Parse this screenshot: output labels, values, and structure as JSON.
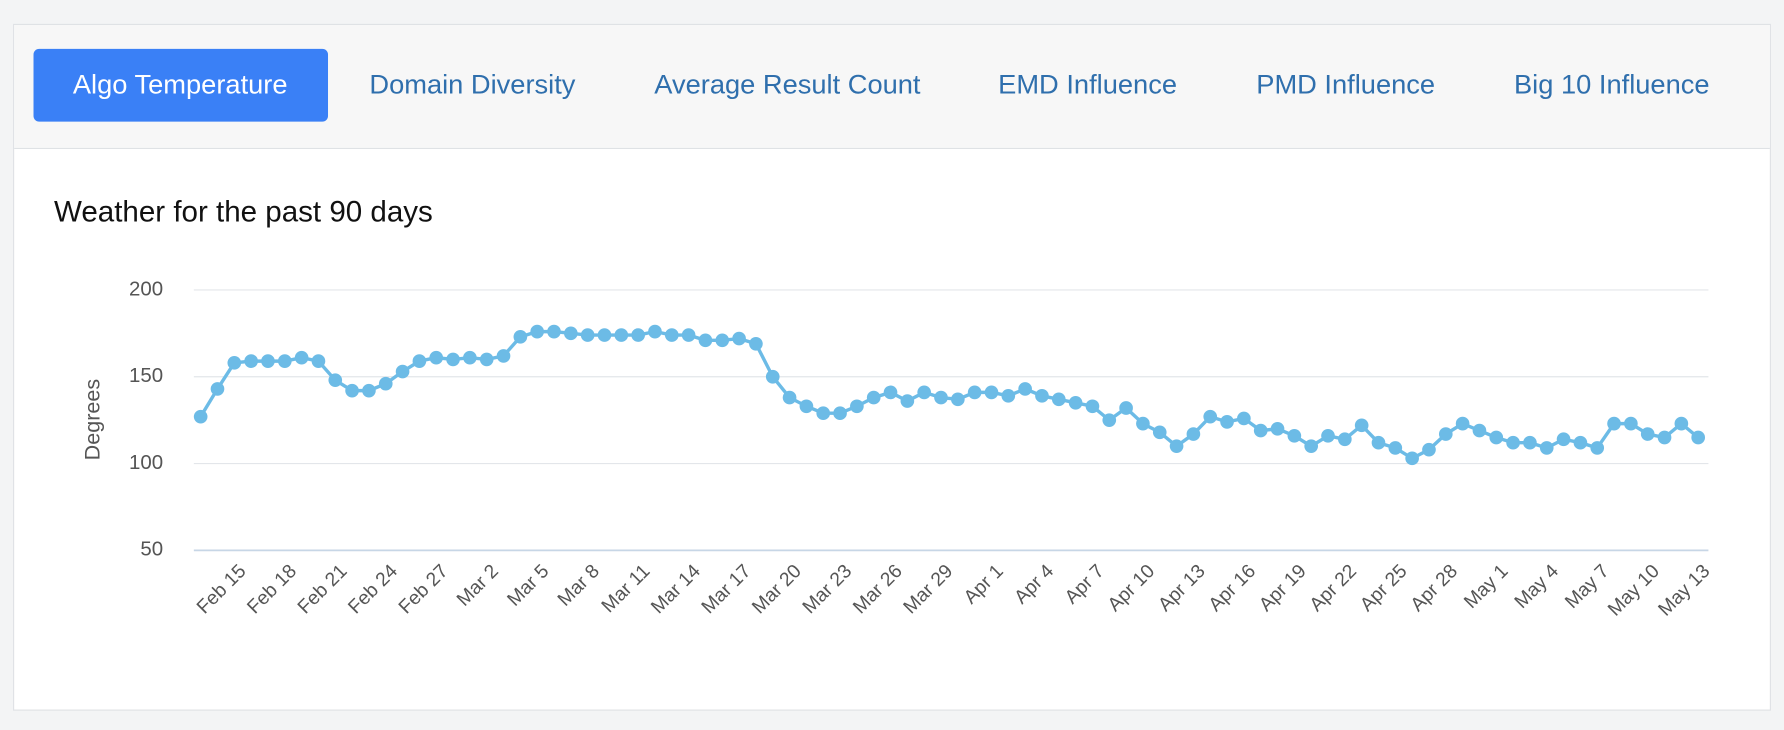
{
  "tabs": [
    "Algo Temperature",
    "Domain Diversity",
    "Average Result Count",
    "EMD Influence",
    "PMD Influence",
    "Big 10 Influence"
  ],
  "active_tab": 0,
  "chart_data": {
    "type": "line",
    "title": "Weather for the past 90 days",
    "y_label": "Degrees",
    "color": "#6cbbe6",
    "grid": true,
    "ylim": [
      50,
      200
    ],
    "yticks": [
      50,
      100,
      150,
      200
    ],
    "categories": [
      null,
      null,
      "Feb 15",
      null,
      null,
      "Feb 18",
      null,
      null,
      "Feb 21",
      null,
      null,
      "Feb 24",
      null,
      null,
      "Feb 27",
      null,
      null,
      "Mar 2",
      null,
      null,
      "Mar 5",
      null,
      null,
      "Mar 8",
      null,
      null,
      "Mar 11",
      null,
      null,
      "Mar 14",
      null,
      null,
      "Mar 17",
      null,
      null,
      "Mar 20",
      null,
      null,
      "Mar 23",
      null,
      null,
      "Mar 26",
      null,
      null,
      "Mar 29",
      null,
      null,
      "Apr 1",
      null,
      null,
      "Apr 4",
      null,
      null,
      "Apr 7",
      null,
      null,
      "Apr 10",
      null,
      null,
      "Apr 13",
      null,
      null,
      "Apr 16",
      null,
      null,
      "Apr 19",
      null,
      null,
      "Apr 22",
      null,
      null,
      "Apr 25",
      null,
      null,
      "Apr 28",
      null,
      null,
      "May 1",
      null,
      null,
      "May 4",
      null,
      null,
      "May 7",
      null,
      null,
      "May 10",
      null,
      null,
      "May 13"
    ],
    "values": [
      127,
      143,
      158,
      159,
      159,
      159,
      161,
      159,
      148,
      142,
      142,
      146,
      153,
      159,
      161,
      160,
      161,
      160,
      162,
      173,
      176,
      176,
      175,
      174,
      174,
      174,
      174,
      176,
      174,
      174,
      171,
      171,
      172,
      169,
      150,
      138,
      133,
      129,
      129,
      133,
      138,
      141,
      136,
      141,
      138,
      137,
      141,
      141,
      139,
      143,
      139,
      137,
      135,
      133,
      125,
      132,
      123,
      118,
      110,
      117,
      127,
      124,
      126,
      119,
      120,
      116,
      110,
      116,
      114,
      122,
      112,
      109,
      103,
      108,
      117,
      123,
      119,
      115,
      112,
      112,
      109,
      114,
      112,
      109,
      123,
      123,
      117,
      115,
      123,
      115
    ]
  }
}
